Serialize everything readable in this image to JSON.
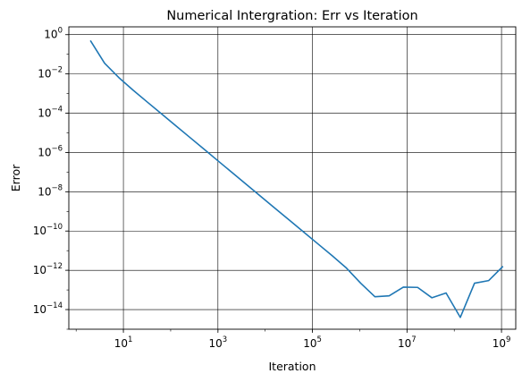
{
  "chart_data": {
    "type": "line",
    "title": "Numerical Intergration: Err vs Iteration",
    "xlabel": "Iteration",
    "ylabel": "Error",
    "xscale": "log",
    "yscale": "log",
    "xlim": [
      0.7,
      2000000000
    ],
    "ylim": [
      1e-15,
      2.5
    ],
    "grid": true,
    "line_color": "#1f77b4",
    "x_ticks": [
      {
        "value": 10,
        "mantissa": "10",
        "exp": "1"
      },
      {
        "value": 1000,
        "mantissa": "10",
        "exp": "3"
      },
      {
        "value": 100000,
        "mantissa": "10",
        "exp": "5"
      },
      {
        "value": 10000000,
        "mantissa": "10",
        "exp": "7"
      },
      {
        "value": 1000000000,
        "mantissa": "10",
        "exp": "9"
      }
    ],
    "y_ticks": [
      {
        "value": 1,
        "mantissa": "10",
        "exp": "0"
      },
      {
        "value": 0.01,
        "mantissa": "10",
        "exp": "−2"
      },
      {
        "value": 0.0001,
        "mantissa": "10",
        "exp": "−4"
      },
      {
        "value": 1e-06,
        "mantissa": "10",
        "exp": "−6"
      },
      {
        "value": 1e-08,
        "mantissa": "10",
        "exp": "−8"
      },
      {
        "value": 1e-10,
        "mantissa": "10",
        "exp": "−10"
      },
      {
        "value": 1e-12,
        "mantissa": "10",
        "exp": "−12"
      },
      {
        "value": 1e-14,
        "mantissa": "10",
        "exp": "−14"
      }
    ],
    "series": [
      {
        "x": [
          2,
          4,
          8,
          16,
          32,
          64,
          128,
          256,
          512,
          1024,
          2048,
          4096,
          8192,
          16384,
          32768,
          65536,
          131072,
          262144,
          524288,
          1048576,
          2097152,
          4194304,
          8388608,
          16777216,
          33554432,
          67108864,
          134217728,
          268435456,
          536870912,
          1073741824
        ],
        "y": [
          0.5,
          0.035,
          0.0065,
          0.0015,
          0.00037,
          9.3e-05,
          2.3e-05,
          5.8e-06,
          1.45e-06,
          3.6e-07,
          9e-08,
          2.25e-08,
          5.6e-09,
          1.4e-09,
          3.5e-10,
          8.8e-11,
          2.2e-11,
          5.5e-12,
          1.3e-12,
          2.2e-13,
          4.5e-14,
          5e-14,
          1.4e-13,
          1.35e-13,
          4e-14,
          7e-14,
          4e-15,
          2.2e-13,
          3e-13,
          1.6e-12
        ]
      }
    ]
  }
}
